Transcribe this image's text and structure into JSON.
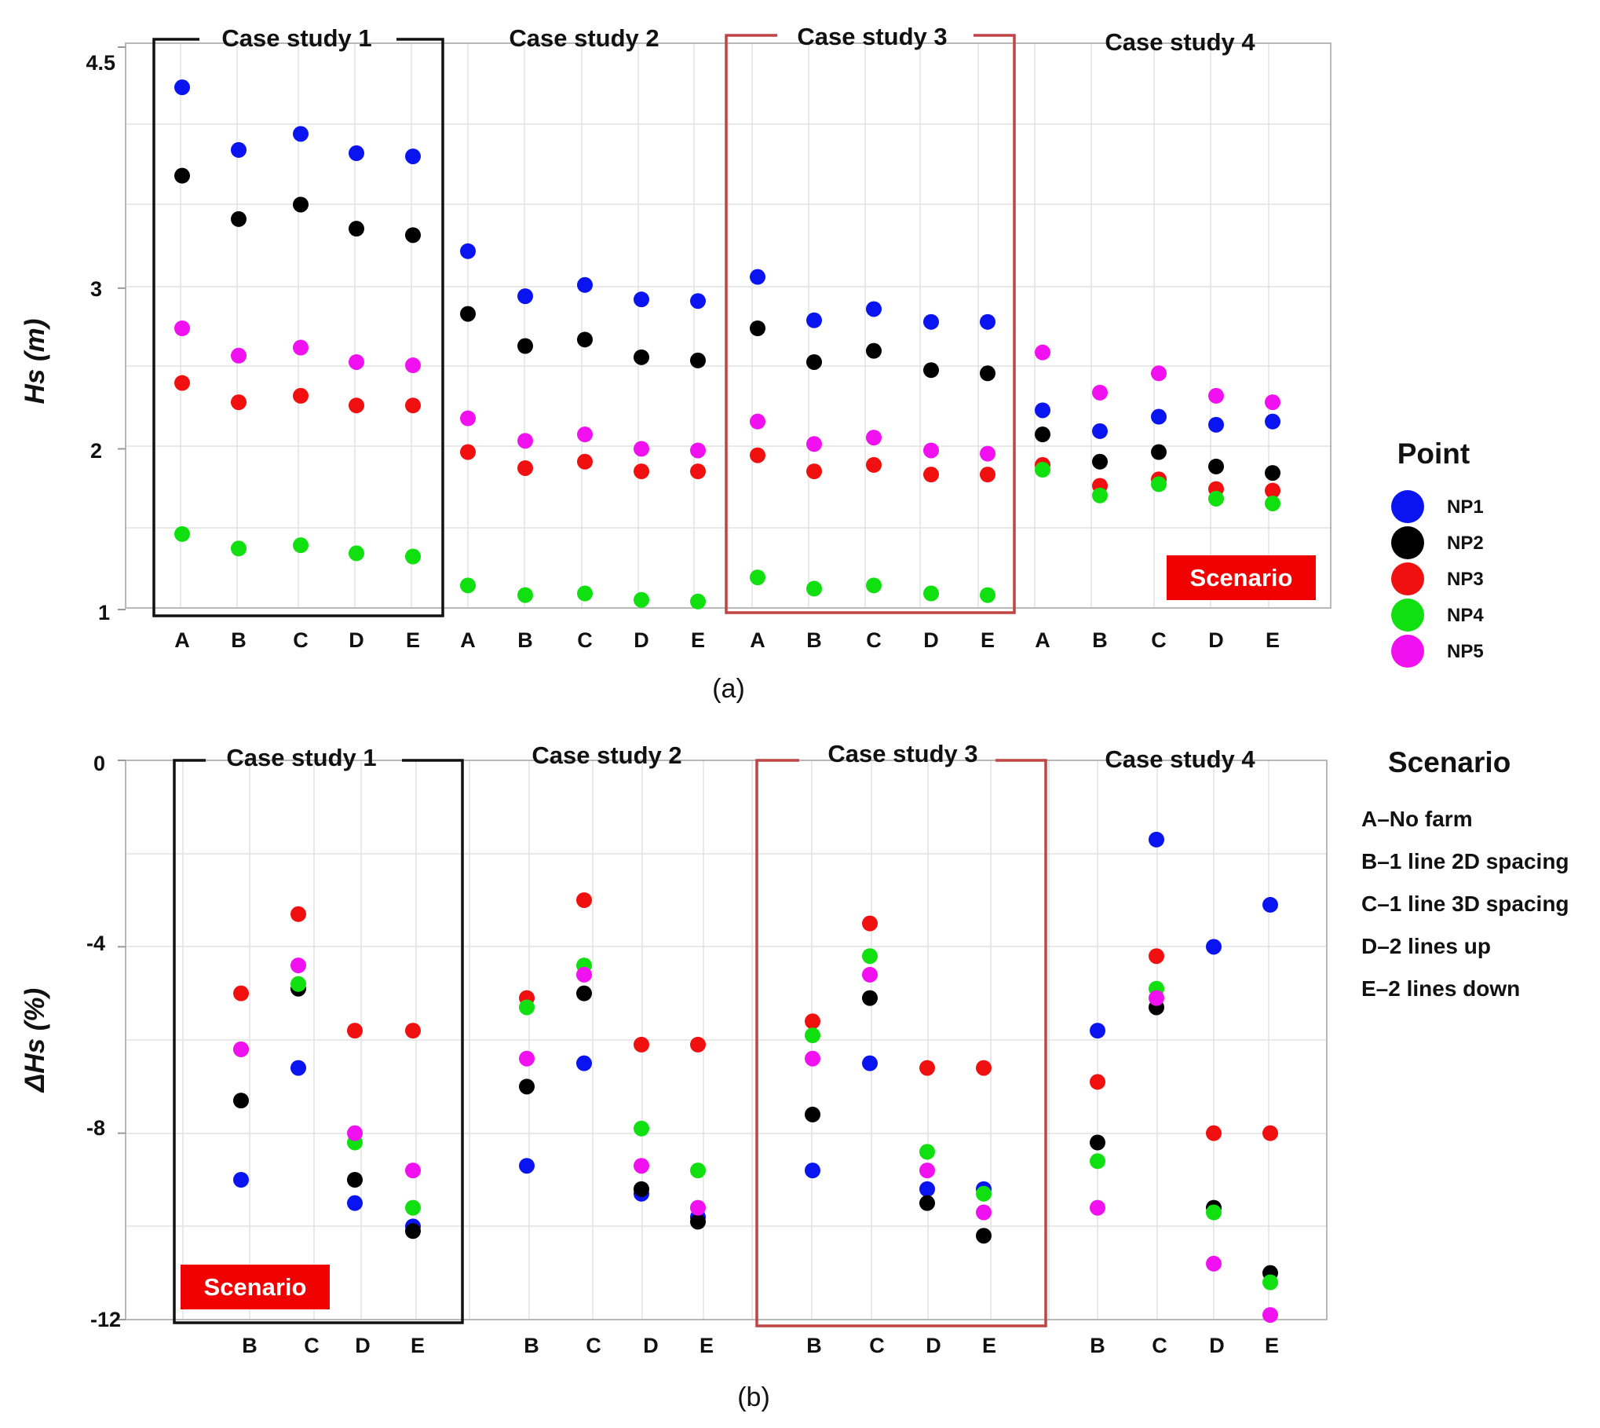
{
  "colors": {
    "NP1": "#0a14f0",
    "NP2": "#000000",
    "NP3": "#f01010",
    "NP4": "#10e010",
    "NP5": "#f010f0",
    "box_case1": "#111111",
    "box_case3": "#c04444",
    "badge": "#f00000"
  },
  "legend": {
    "title": "Point",
    "items": [
      "NP1",
      "NP2",
      "NP3",
      "NP4",
      "NP5"
    ]
  },
  "scenario_legend": {
    "title": "Scenario",
    "items": [
      "A–No farm",
      "B–1 line 2D spacing",
      "C–1 line 3D spacing",
      "D–2 lines up",
      "E–2 lines down"
    ]
  },
  "chart_data": [
    {
      "type": "scatter",
      "panel_label": "(a)",
      "ylabel": "Hs (m)",
      "ylim": [
        1,
        4.5
      ],
      "yticks": [
        "1",
        "2",
        "3",
        "4.5"
      ],
      "ytick_values": [
        1,
        2,
        3,
        4.5
      ],
      "badge": "Scenario",
      "case_studies": [
        {
          "title": "Case study 1",
          "categories": [
            "A",
            "B",
            "C",
            "D",
            "E"
          ],
          "series": [
            {
              "name": "NP1",
              "values": [
                4.25,
                3.86,
                3.96,
                3.84,
                3.82
              ]
            },
            {
              "name": "NP2",
              "values": [
                3.7,
                3.43,
                3.52,
                3.37,
                3.33
              ]
            },
            {
              "name": "NP3",
              "values": [
                2.41,
                2.29,
                2.33,
                2.27,
                2.27
              ]
            },
            {
              "name": "NP4",
              "values": [
                1.47,
                1.38,
                1.4,
                1.35,
                1.33
              ]
            },
            {
              "name": "NP5",
              "values": [
                2.75,
                2.58,
                2.63,
                2.54,
                2.52
              ]
            }
          ]
        },
        {
          "title": "Case study 2",
          "categories": [
            "A",
            "B",
            "C",
            "D",
            "E"
          ],
          "series": [
            {
              "name": "NP1",
              "values": [
                3.23,
                2.95,
                3.02,
                2.93,
                2.92
              ]
            },
            {
              "name": "NP2",
              "values": [
                2.84,
                2.64,
                2.68,
                2.57,
                2.55
              ]
            },
            {
              "name": "NP3",
              "values": [
                1.98,
                1.88,
                1.92,
                1.86,
                1.86
              ]
            },
            {
              "name": "NP4",
              "values": [
                1.15,
                1.09,
                1.1,
                1.06,
                1.05
              ]
            },
            {
              "name": "NP5",
              "values": [
                2.19,
                2.05,
                2.09,
                2.0,
                1.99
              ]
            }
          ]
        },
        {
          "title": "Case study 3",
          "categories": [
            "A",
            "B",
            "C",
            "D",
            "E"
          ],
          "series": [
            {
              "name": "NP1",
              "values": [
                3.07,
                2.8,
                2.87,
                2.79,
                2.79
              ]
            },
            {
              "name": "NP2",
              "values": [
                2.75,
                2.54,
                2.61,
                2.49,
                2.47
              ]
            },
            {
              "name": "NP3",
              "values": [
                1.96,
                1.86,
                1.9,
                1.84,
                1.84
              ]
            },
            {
              "name": "NP4",
              "values": [
                1.2,
                1.13,
                1.15,
                1.1,
                1.09
              ]
            },
            {
              "name": "NP5",
              "values": [
                2.17,
                2.03,
                2.07,
                1.99,
                1.97
              ]
            }
          ]
        },
        {
          "title": "Case study 4",
          "categories": [
            "A",
            "B",
            "C",
            "D",
            "E"
          ],
          "series": [
            {
              "name": "NP1",
              "values": [
                2.24,
                2.11,
                2.2,
                2.15,
                2.17
              ]
            },
            {
              "name": "NP2",
              "values": [
                2.09,
                1.92,
                1.98,
                1.89,
                1.85
              ]
            },
            {
              "name": "NP3",
              "values": [
                1.9,
                1.77,
                1.81,
                1.75,
                1.74
              ]
            },
            {
              "name": "NP4",
              "values": [
                1.87,
                1.71,
                1.78,
                1.69,
                1.66
              ]
            },
            {
              "name": "NP5",
              "values": [
                2.6,
                2.35,
                2.47,
                2.33,
                2.29
              ]
            }
          ]
        }
      ]
    },
    {
      "type": "scatter",
      "panel_label": "(b)",
      "ylabel": "ΔHs (%)",
      "ylim": [
        -12,
        0
      ],
      "yticks": [
        "0",
        "-4",
        "-8",
        "-12"
      ],
      "ytick_values": [
        0,
        -4,
        -8,
        -12
      ],
      "badge": "Scenario",
      "case_studies": [
        {
          "title": "Case study 1",
          "categories": [
            "B",
            "C",
            "D",
            "E"
          ],
          "series": [
            {
              "name": "NP1",
              "values": [
                -9.0,
                -6.6,
                -9.5,
                -10.0
              ]
            },
            {
              "name": "NP2",
              "values": [
                -7.3,
                -4.9,
                -9.0,
                -10.1
              ]
            },
            {
              "name": "NP3",
              "values": [
                -5.0,
                -3.3,
                -5.8,
                -5.8
              ]
            },
            {
              "name": "NP4",
              "values": [
                -6.2,
                -4.8,
                -8.2,
                -9.6
              ]
            },
            {
              "name": "NP5",
              "values": [
                -6.2,
                -4.4,
                -8.0,
                -8.8
              ]
            }
          ]
        },
        {
          "title": "Case study 2",
          "categories": [
            "B",
            "C",
            "D",
            "E"
          ],
          "series": [
            {
              "name": "NP1",
              "values": [
                -8.7,
                -6.5,
                -9.3,
                -9.8
              ]
            },
            {
              "name": "NP2",
              "values": [
                -7.0,
                -5.0,
                -9.2,
                -9.9
              ]
            },
            {
              "name": "NP3",
              "values": [
                -5.1,
                -3.0,
                -6.1,
                -6.1
              ]
            },
            {
              "name": "NP4",
              "values": [
                -5.3,
                -4.4,
                -7.9,
                -8.8
              ]
            },
            {
              "name": "NP5",
              "values": [
                -6.4,
                -4.6,
                -8.7,
                -9.6
              ]
            }
          ]
        },
        {
          "title": "Case study 3",
          "categories": [
            "B",
            "C",
            "D",
            "E"
          ],
          "series": [
            {
              "name": "NP1",
              "values": [
                -8.8,
                -6.5,
                -9.2,
                -9.2
              ]
            },
            {
              "name": "NP2",
              "values": [
                -7.6,
                -5.1,
                -9.5,
                -10.2
              ]
            },
            {
              "name": "NP3",
              "values": [
                -5.6,
                -3.5,
                -6.6,
                -6.6
              ]
            },
            {
              "name": "NP4",
              "values": [
                -5.9,
                -4.2,
                -8.4,
                -9.3
              ]
            },
            {
              "name": "NP5",
              "values": [
                -6.4,
                -4.6,
                -8.8,
                -9.7
              ]
            }
          ]
        },
        {
          "title": "Case study 4",
          "categories": [
            "B",
            "C",
            "D",
            "E"
          ],
          "series": [
            {
              "name": "NP1",
              "values": [
                -5.8,
                -1.7,
                -4.0,
                -3.1
              ]
            },
            {
              "name": "NP2",
              "values": [
                -8.2,
                -5.3,
                -9.6,
                -11.0
              ]
            },
            {
              "name": "NP3",
              "values": [
                -6.9,
                -4.2,
                -8.0,
                -8.0
              ]
            },
            {
              "name": "NP4",
              "values": [
                -8.6,
                -4.9,
                -9.7,
                -11.2
              ]
            },
            {
              "name": "NP5",
              "values": [
                -9.6,
                -5.1,
                -10.8,
                -11.9
              ]
            }
          ]
        }
      ]
    }
  ]
}
